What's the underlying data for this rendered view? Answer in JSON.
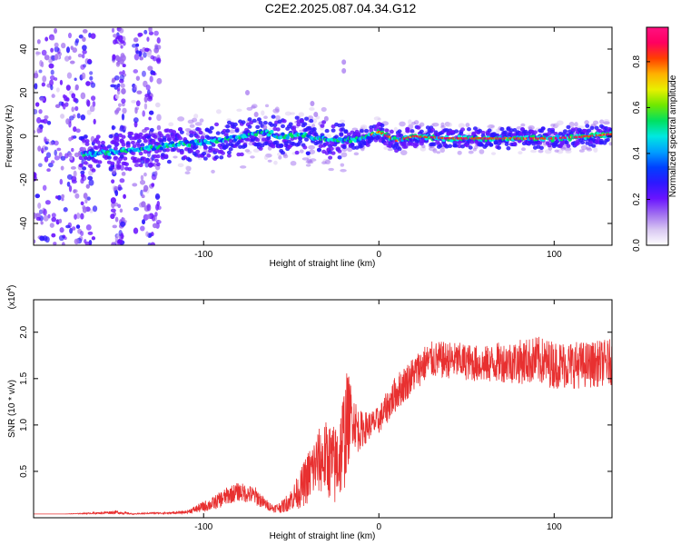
{
  "figure": {
    "title": "C2E2.2025.087.04.34.G12"
  },
  "chart_data": [
    {
      "type": "heatmap",
      "title": "C2E2.2025.087.04.34.G12",
      "xlabel": "Height of straight line (km)",
      "ylabel": "Frequency (Hz)",
      "xlim": [
        -197,
        133
      ],
      "ylim": [
        -50,
        50
      ],
      "xticks": [
        -100,
        0,
        100
      ],
      "yticks": [
        -40,
        -20,
        0,
        20,
        40
      ],
      "colorbar": {
        "label": "Normalized spectral amplitude",
        "range": [
          0,
          0.95
        ],
        "ticks": [
          "0.0",
          "0.2",
          "0.4",
          "0.6",
          "0.8"
        ],
        "colormap": [
          "#ffffff",
          "#d9c8f2",
          "#a06ef0",
          "#6a14ff",
          "#2d18ff",
          "#0040ff",
          "#00a0ff",
          "#00e8e0",
          "#00e060",
          "#70e800",
          "#e8f000",
          "#ffb000",
          "#ff4000",
          "#ff0060",
          "#ff1080"
        ]
      },
      "ridge": [
        {
          "x": -165,
          "y": -8
        },
        {
          "x": -150,
          "y": -7
        },
        {
          "x": -135,
          "y": -6
        },
        {
          "x": -120,
          "y": -4
        },
        {
          "x": -105,
          "y": -3
        },
        {
          "x": -90,
          "y": -2
        },
        {
          "x": -75,
          "y": 0
        },
        {
          "x": -65,
          "y": 2
        },
        {
          "x": -55,
          "y": 0
        },
        {
          "x": -45,
          "y": 1
        },
        {
          "x": -35,
          "y": -1
        },
        {
          "x": -20,
          "y": -2
        },
        {
          "x": -10,
          "y": -1
        },
        {
          "x": 0,
          "y": 2
        },
        {
          "x": 10,
          "y": -2
        },
        {
          "x": 20,
          "y": 0
        },
        {
          "x": 40,
          "y": -1
        },
        {
          "x": 60,
          "y": -1
        },
        {
          "x": 80,
          "y": -1
        },
        {
          "x": 100,
          "y": -1
        },
        {
          "x": 120,
          "y": 0
        },
        {
          "x": 133,
          "y": 1
        }
      ]
    },
    {
      "type": "line",
      "xlabel": "Height of straight line (km)",
      "ylabel": "SNR (10 * v/v)",
      "y_multiplier": "(x10^4)",
      "xlim": [
        -197,
        133
      ],
      "ylim": [
        0,
        23500
      ],
      "xticks": [
        -100,
        0,
        100
      ],
      "yticks": [
        5000,
        10000,
        15000,
        20000
      ],
      "ytick_labels": [
        "0.5",
        "1.0",
        "1.5",
        "2.0"
      ],
      "color": "#e83030",
      "series": [
        {
          "x": [
            -197,
            -180,
            -160,
            -150,
            -140,
            -130,
            -120,
            -110,
            -100,
            -95,
            -90,
            -85,
            -80,
            -75,
            -70,
            -65,
            -60,
            -55,
            -50,
            -45,
            -40,
            -35,
            -30,
            -25,
            -22,
            -20,
            -18,
            -15,
            -12,
            -10,
            -5,
            0,
            5,
            10,
            15,
            20,
            25,
            30,
            40,
            50,
            60,
            70,
            80,
            90,
            100,
            110,
            120,
            133
          ],
          "y": [
            400,
            400,
            500,
            600,
            400,
            500,
            500,
            600,
            1200,
            1500,
            2000,
            2500,
            2800,
            2600,
            2300,
            1500,
            1000,
            1200,
            2000,
            3000,
            4500,
            6000,
            6500,
            5500,
            7000,
            8500,
            10500,
            11000,
            9500,
            9500,
            10000,
            10500,
            12000,
            13500,
            14500,
            15500,
            16500,
            17000,
            17000,
            16800,
            16500,
            16800,
            16800,
            17000,
            16500,
            16500,
            16500,
            16800
          ],
          "noise": [
            0,
            0,
            100,
            200,
            50,
            80,
            100,
            150,
            600,
            700,
            900,
            1000,
            1000,
            1000,
            1000,
            600,
            400,
            700,
            1200,
            2000,
            3000,
            3500,
            4000,
            4500,
            5000,
            6000,
            5500,
            3000,
            2500,
            2000,
            1500,
            1500,
            1800,
            2000,
            2000,
            2000,
            2000,
            2000,
            2000,
            2000,
            2000,
            2200,
            2400,
            2600,
            2600,
            2600,
            2500,
            2500
          ]
        }
      ]
    }
  ]
}
